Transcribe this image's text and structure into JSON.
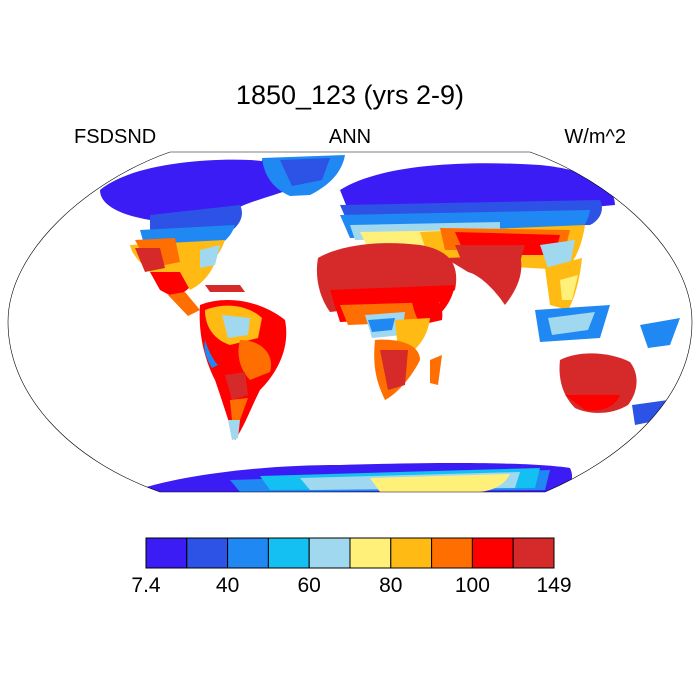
{
  "header": {
    "title": "1850_123 (yrs 2-9)",
    "left": "FSDSND",
    "center": "ANN",
    "right": "W/m^2"
  },
  "colorbar": {
    "colors": [
      "#3c1cf5",
      "#2d52e6",
      "#1f88f2",
      "#14bff2",
      "#a0d8f0",
      "#fff07a",
      "#ffbb14",
      "#ff6e00",
      "#ff0000",
      "#d62a2a"
    ],
    "labels": [
      "7.4",
      "40",
      "60",
      "80",
      "100",
      "149"
    ]
  },
  "map": {
    "projection": "Robinson",
    "ocean_color": "#ffffff",
    "land_outline_color": "#000000"
  }
}
